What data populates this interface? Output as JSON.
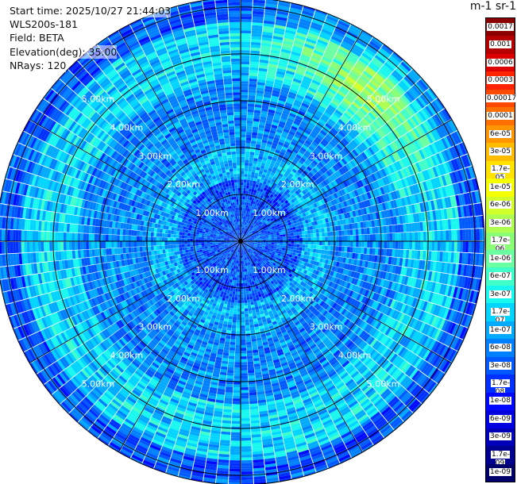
{
  "info": {
    "start_time": "Start time: 2025/10/27 21:44:03",
    "instrument": "WLS200s-181",
    "field": "Field: BETA",
    "elevation": "Elevation(deg): 35.00",
    "nrays": "NRays: 120"
  },
  "colorbar": {
    "title": "m-1 sr-1",
    "labels": [
      "0.0017",
      "0.001",
      "0.0006",
      "0.0003",
      "0.00017",
      "0.0001",
      "6e-05",
      "3e-05",
      "1.7e-05",
      "1e-05",
      "6e-06",
      "3e-06",
      "1.7e-06",
      "1e-06",
      "6e-07",
      "3e-07",
      "1.7e-07",
      "1e-07",
      "6e-08",
      "3e-08",
      "1.7e-08",
      "1e-08",
      "6e-09",
      "3e-09",
      "1.7e-09",
      "1e-09"
    ],
    "colors": [
      "#8b0000",
      "#b40000",
      "#dc0000",
      "#ff2400",
      "#ff4a00",
      "#ff7000",
      "#ff9600",
      "#ffbc00",
      "#ffe200",
      "#f6ff00",
      "#d2ff2a",
      "#aeff50",
      "#8aff76",
      "#6affa0",
      "#40ffc8",
      "#18f8ef",
      "#00d4ff",
      "#00aaff",
      "#0080ff",
      "#0058ff",
      "#0030ff",
      "#0008ff",
      "#0000e0",
      "#0000b8",
      "#000090",
      "#00006a"
    ]
  },
  "chart_data": {
    "type": "heatmap",
    "projection": "polar PPI",
    "field": "BETA",
    "elevation_deg": 35.0,
    "n_rays": 120,
    "max_range_km": 5.2,
    "range_ring_km": [
      1.0,
      2.0,
      3.0,
      4.0,
      5.0
    ],
    "range_labels": [
      "1.00km",
      "2.00km",
      "3.00km",
      "4.00km",
      "5.00km"
    ],
    "scale": "log",
    "value_range": [
      1e-09,
      0.0017
    ],
    "zones": [
      {
        "range_km": [
          0.0,
          1.3
        ],
        "approx_value": 3e-08
      },
      {
        "range_km": [
          1.3,
          2.0
        ],
        "approx_value": 1e-07
      },
      {
        "range_km": [
          2.0,
          3.5
        ],
        "approx_value": 6e-08
      },
      {
        "range_km": [
          3.5,
          4.7
        ],
        "approx_value": 1.7e-07
      },
      {
        "range_km": [
          4.7,
          5.2
        ],
        "approx_value": 3e-08
      }
    ],
    "hotspot": {
      "azimuth_deg": 40,
      "range_km": 4.2,
      "approx_value": 3e-06
    }
  }
}
